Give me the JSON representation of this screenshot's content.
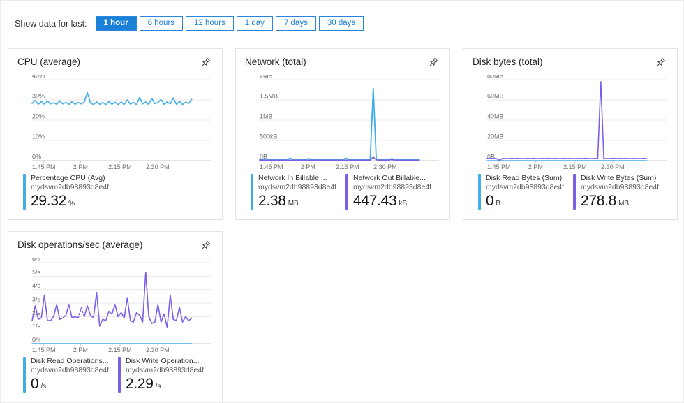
{
  "colors": {
    "blue": "#41aee9",
    "purple": "#7c5fe9",
    "selected_button": "#1b80d8",
    "button_border": "#2a86dc",
    "grid": "#e8e8e8",
    "axis": "#c9c7c5"
  },
  "toolbar": {
    "label": "Show data for last:",
    "options": [
      {
        "label": "1 hour",
        "selected": true
      },
      {
        "label": "6 hours",
        "selected": false
      },
      {
        "label": "12 hours",
        "selected": false
      },
      {
        "label": "1 day",
        "selected": false
      },
      {
        "label": "7 days",
        "selected": false
      },
      {
        "label": "30 days",
        "selected": false
      }
    ]
  },
  "tiles": [
    {
      "title": "CPU (average)",
      "legend": [
        {
          "color": "blue",
          "name": "Percentage CPU (Avg)",
          "resource": "mydsvm2db98893d8e4f",
          "value": "29.32",
          "unit": "%"
        }
      ],
      "chart_data": {
        "type": "line",
        "ymax": 40,
        "ylabels": [
          "40%",
          "30%",
          "20%",
          "10%",
          "0%"
        ],
        "xticks": [
          {
            "pos": 0.065,
            "label": "1:45 PM"
          },
          {
            "pos": 0.27,
            "label": "2 PM"
          },
          {
            "pos": 0.49,
            "label": "2:15 PM"
          },
          {
            "pos": 0.7,
            "label": "2:30 PM"
          }
        ],
        "span": 0.89,
        "series": [
          {
            "name": "Percentage CPU (Avg)",
            "color": "blue",
            "width": 1.6,
            "values": [
              28.2,
              29.8,
              27.8,
              29.2,
              27.9,
              29.4,
              28.0,
              28.6,
              27.8,
              29.6,
              28.0,
              28.8,
              27.7,
              29.2,
              27.8,
              28.8,
              28.0,
              29.0,
              33.6,
              28.4,
              27.7,
              29.0,
              27.8,
              28.8,
              27.6,
              29.2,
              27.8,
              28.9,
              27.6,
              29.0,
              27.7,
              30.0,
              27.9,
              28.8,
              27.6,
              31.2,
              28.0,
              29.0,
              27.7,
              30.8,
              28.1,
              28.7,
              30.2,
              27.8,
              29.0,
              28.0,
              31.0,
              27.8,
              29.3,
              27.7,
              28.9,
              28.2,
              30.3
            ]
          }
        ]
      }
    },
    {
      "title": "Network (total)",
      "legend": [
        {
          "color": "blue",
          "name": "Network In Billable ...",
          "resource": "mydsvm2db98893d8e4f",
          "value": "2.38",
          "unit": "MB"
        },
        {
          "color": "purple",
          "name": "Network Out Billable...",
          "resource": "mydsvm2db98893d8e4f",
          "value": "447.43",
          "unit": "kB"
        }
      ],
      "chart_data": {
        "type": "line",
        "ymax": 2,
        "ylabels": [
          "2MB",
          "1.5MB",
          "1MB",
          "500kB",
          "0B"
        ],
        "xticks": [
          {
            "pos": 0.065,
            "label": "1:45 PM"
          },
          {
            "pos": 0.27,
            "label": "2 PM"
          },
          {
            "pos": 0.49,
            "label": "2:15 PM"
          },
          {
            "pos": 0.7,
            "label": "2:30 PM"
          }
        ],
        "span": 0.89,
        "series": [
          {
            "name": "Network In Billable",
            "color": "blue",
            "width": 1.8,
            "values": [
              0.02,
              0.02,
              0.05,
              0.03,
              0.02,
              0.02,
              0.02,
              0.02,
              0.02,
              0.03,
              0.06,
              0.02,
              0.02,
              0.02,
              0.02,
              0.02,
              0.05,
              0.03,
              0.02,
              0.02,
              0.02,
              0.02,
              0.02,
              0.02,
              0.02,
              0.02,
              0.02,
              0.02,
              0.06,
              0.03,
              0.02,
              0.02,
              0.02,
              0.02,
              0.02,
              0.02,
              0.03,
              1.78,
              0.04,
              0.02,
              0.02,
              0.02,
              0.02,
              0.05,
              0.03,
              0.02,
              0.02,
              0.02,
              0.02,
              0.02,
              0.02,
              0.02,
              0.02
            ]
          },
          {
            "name": "Network Out Billable",
            "color": "purple",
            "width": 1.6,
            "values": [
              0.012,
              0.012,
              0.012,
              0.012,
              0.012,
              0.012,
              0.012,
              0.012,
              0.012,
              0.012,
              0.012,
              0.012,
              0.012,
              0.012,
              0.012,
              0.012,
              0.012,
              0.012,
              0.012,
              0.012,
              0.012,
              0.012,
              0.012,
              0.012,
              0.012,
              0.012,
              0.012,
              0.012,
              0.012,
              0.012,
              0.012,
              0.012,
              0.012,
              0.012,
              0.012,
              0.012,
              0.012,
              0.09,
              0.02,
              0.012,
              0.012,
              0.012,
              0.012,
              0.03,
              0.012,
              0.012,
              0.012,
              0.012,
              0.012,
              0.012,
              0.012,
              0.012,
              0.012
            ]
          }
        ]
      }
    },
    {
      "title": "Disk bytes (total)",
      "legend": [
        {
          "color": "blue",
          "name": "Disk Read Bytes (Sum)",
          "resource": "mydsvm2db98893d8e4f",
          "value": "0",
          "unit": "B"
        },
        {
          "color": "purple",
          "name": "Disk Write Bytes (Sum)",
          "resource": "mydsvm2db98893d8e4f",
          "value": "278.8",
          "unit": "MB"
        }
      ],
      "chart_data": {
        "type": "line",
        "ymax": 80,
        "ylabels": [
          "80MB",
          "60MB",
          "40MB",
          "20MB",
          "0B"
        ],
        "xticks": [
          {
            "pos": 0.065,
            "label": "1:45 PM"
          },
          {
            "pos": 0.27,
            "label": "2 PM"
          },
          {
            "pos": 0.49,
            "label": "2:15 PM"
          },
          {
            "pos": 0.7,
            "label": "2:30 PM"
          }
        ],
        "span": 0.89,
        "series": [
          {
            "name": "Disk Read Bytes (Sum)",
            "color": "blue",
            "width": 1.6,
            "values": [
              0,
              0
            ]
          },
          {
            "name": "Disk Write Bytes (Sum)",
            "color": "purple",
            "width": 1.6,
            "values": [
              2.2,
              2.0,
              2.3,
              2.1,
              0.4,
              2.2,
              2.0,
              2.1,
              2.3,
              2.0,
              2.2,
              2.1,
              2.0,
              2.2,
              2.1,
              2.3,
              2.0,
              2.1,
              2.2,
              2.0,
              2.3,
              2.1,
              2.2,
              2.0,
              2.1,
              2.3,
              2.0,
              2.2,
              2.1,
              2.0,
              2.2,
              2.1,
              2.3,
              2.0,
              2.1,
              2.2,
              2.0,
              78,
              2.2,
              2.0,
              2.1,
              2.3,
              2.0,
              2.2,
              2.1,
              2.2,
              2.0,
              2.1,
              2.2,
              2.0,
              2.1,
              2.2,
              2.0
            ]
          }
        ]
      }
    },
    {
      "title": "Disk operations/sec (average)",
      "legend": [
        {
          "color": "blue",
          "name": "Disk Read Operations...",
          "resource": "mydsvm2db98893d8e4f",
          "value": "0",
          "unit": "/s"
        },
        {
          "color": "purple",
          "name": "Disk Write Operation...",
          "resource": "mydsvm2db98893d8e4f",
          "value": "2.29",
          "unit": "/s"
        }
      ],
      "chart_data": {
        "type": "line",
        "ymax": 6,
        "ylabels": [
          "6/s",
          "5/s",
          "4/s",
          "3/s",
          "2/s",
          "1/s",
          "0/s"
        ],
        "xticks": [
          {
            "pos": 0.065,
            "label": "1:45 PM"
          },
          {
            "pos": 0.27,
            "label": "2 PM"
          },
          {
            "pos": 0.49,
            "label": "2:15 PM"
          },
          {
            "pos": 0.7,
            "label": "2:30 PM"
          }
        ],
        "span": 0.89,
        "series": [
          {
            "name": "Disk Read Operations/Sec (Avg)",
            "color": "blue",
            "width": 1.6,
            "values": [
              0,
              0
            ]
          },
          {
            "name": "Disk Write Operations/Sec (Avg)",
            "color": "purple",
            "width": 1.6,
            "values": [
              1.7,
              2.8,
              1.8,
              1.9,
              3.6,
              1.7,
              1.7,
              2.0,
              2.9,
              1.8,
              1.9,
              2.1,
              2.9,
              1.9,
              2.0,
              1.9,
              null,
              2.0,
              2.8,
              2.1,
              1.9,
              3.8,
              1.3,
              1.8,
              1.7,
              2.4,
              2.2,
              2.9,
              2.0,
              2.3,
              1.9,
              3.4,
              1.7,
              1.6,
              2.3,
              2.1,
              1.6,
              5.3,
              2.0,
              1.5,
              1.6,
              2.9,
              1.6,
              2.2,
              1.2,
              3.6,
              1.8,
              1.7,
              2.7,
              1.6,
              2.0,
              1.7,
              1.9
            ]
          },
          {
            "name": "Disk Write Operations/Sec (partial)",
            "color": "purple",
            "width": 1.6,
            "dash": "2,3",
            "values": [
              null,
              null,
              null,
              null,
              null,
              null,
              null,
              null,
              null,
              null,
              null,
              null,
              null,
              null,
              null,
              1.9,
              2.65,
              2.0,
              null,
              null,
              null,
              null,
              null,
              null,
              null,
              null,
              null,
              null,
              null,
              null,
              null,
              null,
              null,
              null,
              null,
              null,
              null,
              null,
              null,
              null,
              null,
              null,
              null,
              null,
              null,
              null,
              null,
              null,
              null,
              null,
              null,
              null,
              null
            ]
          }
        ]
      }
    }
  ]
}
